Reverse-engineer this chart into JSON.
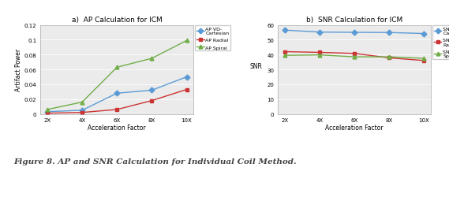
{
  "x_labels": [
    "2X",
    "4X",
    "6X",
    "8X",
    "10X"
  ],
  "x_vals": [
    0,
    1,
    2,
    3,
    4
  ],
  "ap_vd_cartesian": [
    0.003,
    0.005,
    0.028,
    0.032,
    0.05
  ],
  "ap_radial": [
    0.001,
    0.002,
    0.006,
    0.018,
    0.033
  ],
  "ap_spiral": [
    0.006,
    0.016,
    0.063,
    0.075,
    0.099
  ],
  "snr_vd_cartesian": [
    56.5,
    55.2,
    55.0,
    54.9,
    54.2
  ],
  "snr_radial": [
    42.0,
    41.5,
    40.8,
    37.8,
    36.0
  ],
  "snr_spiral": [
    39.5,
    39.8,
    38.5,
    38.5,
    37.5
  ],
  "ap_color_vd": "#5B9BD5",
  "ap_color_radial": "#CC3333",
  "ap_color_spiral": "#70AD47",
  "snr_color_vd": "#5B9BD5",
  "snr_color_radial": "#CC3333",
  "snr_color_spiral": "#70AD47",
  "title_ap": "a)  AP Calculation for ICM",
  "title_snr": "b)  SNR Calculation for ICM",
  "ylabel_ap": "Artifact Power",
  "ylabel_snr": "SNR",
  "xlabel": "Acceleration Factor",
  "legend_ap": [
    "AP VD-\nCartesian",
    "AP Radial",
    "AP Spiral"
  ],
  "legend_snr": [
    "SNR (dB) VD-\nCartesian",
    "SNR (dB)\nRadial",
    "SNR (dB)\nSpiral"
  ],
  "ap_ylim": [
    0,
    0.12
  ],
  "ap_yticks": [
    0,
    0.02,
    0.04,
    0.06,
    0.08,
    0.1,
    0.12
  ],
  "snr_ylim": [
    0,
    60
  ],
  "snr_yticks": [
    0,
    10,
    20,
    30,
    40,
    50,
    60
  ],
  "figure_caption": "Figure 8. AP and SNR Calculation for Individual Coil Method.",
  "plot_bg": "#EBEBEB"
}
